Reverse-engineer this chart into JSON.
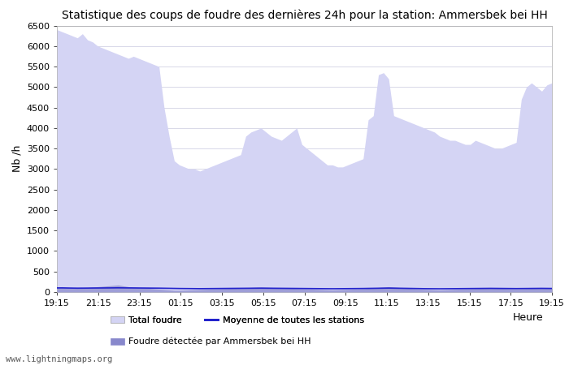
{
  "title": "Statistique des coups de foudre des dernières 24h pour la station: Ammersbek bei HH",
  "xlabel": "Heure",
  "ylabel": "Nb /h",
  "ylim": [
    0,
    6500
  ],
  "yticks": [
    0,
    500,
    1000,
    1500,
    2000,
    2500,
    3000,
    3500,
    4000,
    4500,
    5000,
    5500,
    6000,
    6500
  ],
  "xtick_labels": [
    "19:15",
    "21:15",
    "23:15",
    "01:15",
    "03:15",
    "05:15",
    "07:15",
    "09:15",
    "11:15",
    "13:15",
    "15:15",
    "17:15",
    "19:15"
  ],
  "background_color": "#ffffff",
  "plot_bg_color": "#ffffff",
  "grid_color": "#d8d8e8",
  "fill_total_color": "#d4d4f4",
  "fill_station_color": "#8888cc",
  "line_mean_color": "#2222cc",
  "line_station_color": "#2222cc",
  "watermark": "www.lightningmaps.org",
  "total_foudre": [
    6400,
    6350,
    6300,
    6250,
    6200,
    6300,
    6150,
    6100,
    6000,
    5950,
    5900,
    5850,
    5800,
    5750,
    5700,
    5750,
    5700,
    5650,
    5600,
    5550,
    5500,
    4500,
    3800,
    3200,
    3100,
    3050,
    3000,
    3000,
    2950,
    3000,
    3050,
    3100,
    3150,
    3200,
    3250,
    3300,
    3350,
    3800,
    3900,
    3950,
    4000,
    3900,
    3800,
    3750,
    3700,
    3800,
    3900,
    4000,
    3600,
    3500,
    3400,
    3300,
    3200,
    3100,
    3100,
    3050,
    3050,
    3100,
    3150,
    3200,
    3250,
    4200,
    4300,
    5300,
    5350,
    5200,
    4300,
    4250,
    4200,
    4150,
    4100,
    4050,
    4000,
    3950,
    3900,
    3800,
    3750,
    3700,
    3700,
    3650,
    3600,
    3600,
    3700,
    3650,
    3600,
    3550,
    3500,
    3500,
    3550,
    3600,
    3650,
    4700,
    5000,
    5100,
    5000,
    4900,
    5050,
    5100
  ],
  "station_foudre": [
    120,
    130,
    110,
    100,
    90,
    100,
    110,
    120,
    130,
    140,
    150,
    160,
    170,
    150,
    130,
    120,
    110,
    100,
    90,
    80,
    70,
    60,
    50,
    40,
    40,
    45,
    50,
    55,
    60,
    65,
    70,
    75,
    80,
    85,
    90,
    95,
    100,
    105,
    110,
    115,
    120,
    115,
    110,
    105,
    100,
    95,
    90,
    85,
    80,
    75,
    70,
    65,
    60,
    55,
    50,
    55,
    60,
    65,
    70,
    75,
    80,
    90,
    100,
    110,
    120,
    130,
    120,
    110,
    100,
    90,
    80,
    70,
    65,
    60,
    55,
    50,
    55,
    60,
    65,
    70,
    75,
    80,
    85,
    90,
    95,
    100,
    95,
    90,
    85,
    80,
    75,
    80,
    85,
    90,
    95,
    100,
    95,
    90
  ],
  "mean_line": [
    100,
    100,
    98,
    96,
    94,
    95,
    96,
    97,
    98,
    99,
    100,
    101,
    102,
    101,
    100,
    99,
    98,
    97,
    96,
    95,
    94,
    92,
    90,
    88,
    86,
    85,
    84,
    83,
    82,
    83,
    84,
    85,
    86,
    87,
    88,
    89,
    90,
    91,
    92,
    93,
    94,
    93,
    92,
    91,
    90,
    89,
    88,
    87,
    86,
    85,
    84,
    83,
    82,
    81,
    80,
    81,
    82,
    83,
    84,
    85,
    86,
    88,
    90,
    92,
    94,
    96,
    94,
    92,
    90,
    88,
    86,
    84,
    82,
    81,
    80,
    79,
    80,
    81,
    82,
    83,
    84,
    85,
    86,
    87,
    88,
    89,
    88,
    87,
    86,
    85,
    84,
    85,
    86,
    87,
    88,
    89,
    88,
    87
  ]
}
